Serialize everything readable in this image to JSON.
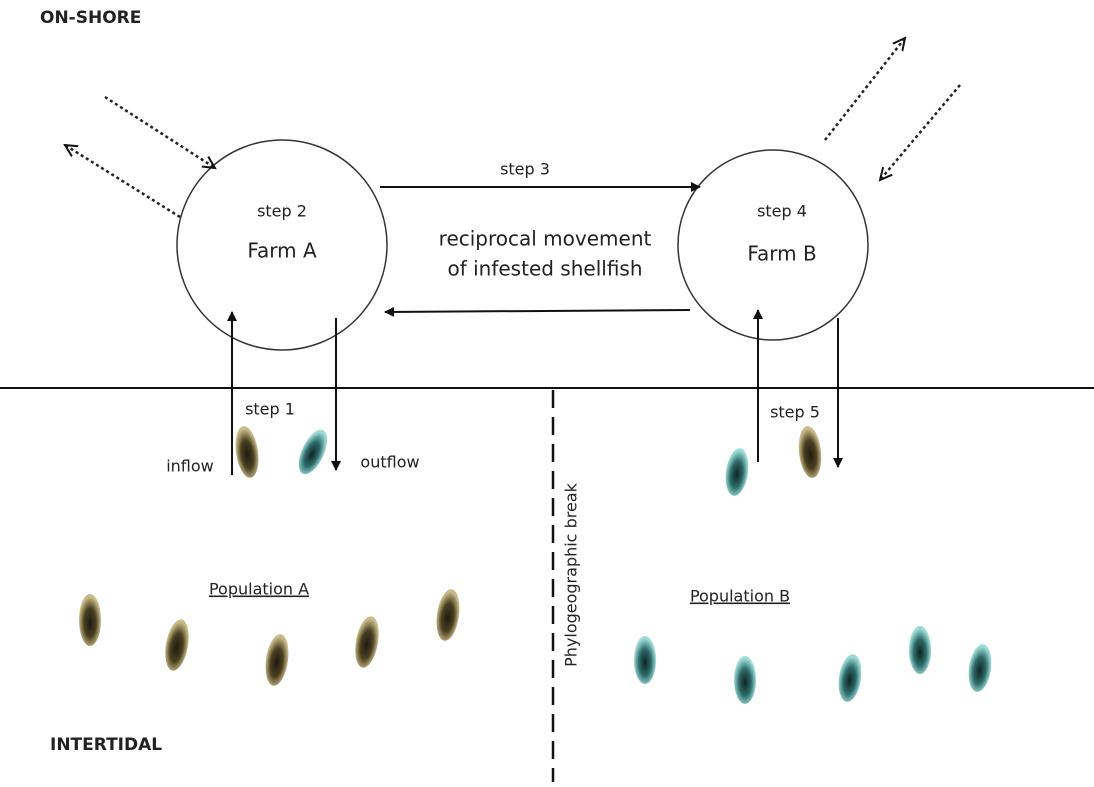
{
  "zones": {
    "top": "ON-SHORE",
    "bottom": "INTERTIDAL"
  },
  "nodes": [
    {
      "step": "step 2",
      "label": "Farm A"
    },
    {
      "step": "step 4",
      "label": "Farm B"
    }
  ],
  "transfer": {
    "step": "step 3",
    "label": [
      "reciprocal movement",
      "of infested shellfish"
    ]
  },
  "flows": {
    "step_a": "step 1",
    "step_b": "step 5",
    "inflow": "inflow",
    "outflow": "outflow"
  },
  "populations": [
    "Population A",
    "Population B"
  ],
  "break": "Phylogeographic break"
}
